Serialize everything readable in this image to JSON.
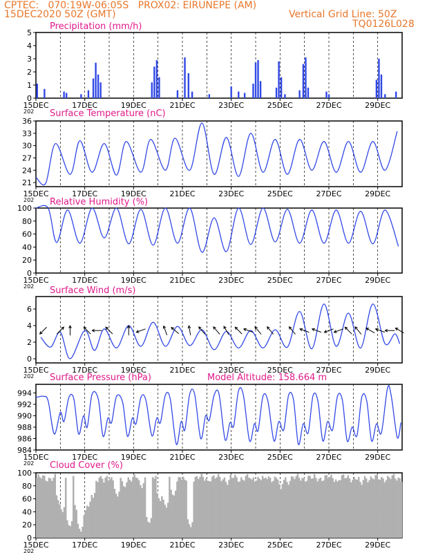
{
  "header": {
    "line1": "CPTEC:   070:19W-06:05S   PROX02: EIRUNEPE (AM)",
    "line2": "15DEC2020 50Z (GMT)",
    "grid_note": "Vertical Grid Line: 50Z",
    "code": "TQ0126L028"
  },
  "colors": {
    "header": "#e8772a",
    "title": "#e0198a",
    "series": "#3048e6",
    "cloud": "#b0b0b0"
  },
  "x_axis": {
    "tick_labels": [
      "15DEC",
      "17DEC",
      "19DEC",
      "21DEC",
      "23DEC",
      "25DEC",
      "27DEC",
      "29DEC"
    ],
    "year_fragment": "202",
    "days": 15
  },
  "extra_label": "Model Altitude: 158.664 m",
  "chart_data": [
    {
      "type": "bar",
      "title": "Precipitation (mm/h)",
      "ylim": [
        0,
        5
      ],
      "yticks": [
        "0",
        "1",
        "2",
        "3",
        "4",
        "5"
      ],
      "events": [
        {
          "day": 0.05,
          "value": 1.1
        },
        {
          "day": 0.35,
          "value": 0.7
        },
        {
          "day": 1.15,
          "value": 0.5
        },
        {
          "day": 1.25,
          "value": 0.4
        },
        {
          "day": 1.85,
          "value": 0.3
        },
        {
          "day": 2.15,
          "value": 0.6
        },
        {
          "day": 2.35,
          "value": 1.5
        },
        {
          "day": 2.45,
          "value": 2.7
        },
        {
          "day": 2.55,
          "value": 1.8
        },
        {
          "day": 2.65,
          "value": 1.2
        },
        {
          "day": 4.75,
          "value": 1.2
        },
        {
          "day": 4.85,
          "value": 2.4
        },
        {
          "day": 4.95,
          "value": 2.9
        },
        {
          "day": 5.05,
          "value": 1.6
        },
        {
          "day": 5.8,
          "value": 0.6
        },
        {
          "day": 6.1,
          "value": 3.1
        },
        {
          "day": 6.25,
          "value": 1.9
        },
        {
          "day": 6.4,
          "value": 0.5
        },
        {
          "day": 7.1,
          "value": 0.3
        },
        {
          "day": 8.0,
          "value": 0.9
        },
        {
          "day": 8.3,
          "value": 0.5
        },
        {
          "day": 8.55,
          "value": 0.4
        },
        {
          "day": 8.9,
          "value": 1.1
        },
        {
          "day": 9.0,
          "value": 2.7
        },
        {
          "day": 9.1,
          "value": 2.9
        },
        {
          "day": 9.2,
          "value": 1.3
        },
        {
          "day": 9.85,
          "value": 0.8
        },
        {
          "day": 9.95,
          "value": 2.8
        },
        {
          "day": 10.05,
          "value": 1.6
        },
        {
          "day": 10.2,
          "value": 0.3
        },
        {
          "day": 10.8,
          "value": 0.6
        },
        {
          "day": 10.95,
          "value": 2.6
        },
        {
          "day": 11.05,
          "value": 3.1
        },
        {
          "day": 11.15,
          "value": 0.8
        },
        {
          "day": 11.9,
          "value": 0.5
        },
        {
          "day": 12.0,
          "value": 0.3
        },
        {
          "day": 13.95,
          "value": 1.4
        },
        {
          "day": 14.05,
          "value": 3.0
        },
        {
          "day": 14.15,
          "value": 1.8
        },
        {
          "day": 14.3,
          "value": 0.3
        },
        {
          "day": 14.75,
          "value": 0.5
        }
      ]
    },
    {
      "type": "line",
      "title": "Surface Temperature (nC)",
      "ylim": [
        20,
        36
      ],
      "ytick_values": [
        21,
        24,
        27,
        30,
        33,
        36
      ],
      "yticks": [
        "21",
        "24",
        "27",
        "30",
        "33",
        "36"
      ],
      "peaks": [
        [
          0,
          22.3
        ],
        [
          0.8,
          30.5
        ],
        [
          1.8,
          31.2
        ],
        [
          2.8,
          30.5
        ],
        [
          3.7,
          31
        ],
        [
          4.7,
          31.5
        ],
        [
          5.7,
          31.8
        ],
        [
          6.8,
          35.5
        ],
        [
          7.8,
          32
        ],
        [
          8.8,
          33
        ],
        [
          9.8,
          31.5
        ],
        [
          10.8,
          31.5
        ],
        [
          11.8,
          31
        ],
        [
          12.8,
          31
        ],
        [
          13.8,
          31
        ],
        [
          14.8,
          33.5
        ]
      ],
      "troughs": [
        [
          0.4,
          20.8
        ],
        [
          1.4,
          23
        ],
        [
          2.3,
          23.5
        ],
        [
          3.3,
          22.8
        ],
        [
          4.3,
          23.5
        ],
        [
          5.3,
          24
        ],
        [
          6.3,
          24
        ],
        [
          7.3,
          23
        ],
        [
          8.3,
          22.5
        ],
        [
          9.3,
          23.5
        ],
        [
          10.3,
          23
        ],
        [
          11.3,
          24
        ],
        [
          12.3,
          23.5
        ],
        [
          13.3,
          23.5
        ],
        [
          14.3,
          24
        ]
      ]
    },
    {
      "type": "line",
      "title": "Relative Humidity (%)",
      "ylim": [
        0,
        100
      ],
      "ytick_values": [
        0,
        20,
        40,
        60,
        80,
        100
      ],
      "yticks": [
        "0",
        "20",
        "40",
        "60",
        "80",
        "100"
      ],
      "peaks": [
        [
          0,
          100
        ],
        [
          0.5,
          100
        ],
        [
          1.3,
          97
        ],
        [
          2.3,
          100
        ],
        [
          3.3,
          100
        ],
        [
          4.3,
          98
        ],
        [
          5.3,
          100
        ],
        [
          6.3,
          100
        ],
        [
          7.3,
          85
        ],
        [
          8.3,
          100
        ],
        [
          9.3,
          100
        ],
        [
          10.3,
          98
        ],
        [
          11.3,
          97
        ],
        [
          12.3,
          97
        ],
        [
          13.3,
          95
        ],
        [
          14.3,
          97
        ]
      ],
      "troughs": [
        [
          0.85,
          47
        ],
        [
          1.8,
          46
        ],
        [
          2.8,
          54
        ],
        [
          3.8,
          45
        ],
        [
          4.8,
          43
        ],
        [
          5.8,
          46
        ],
        [
          6.8,
          32
        ],
        [
          7.8,
          33
        ],
        [
          8.8,
          44
        ],
        [
          9.8,
          48
        ],
        [
          10.8,
          46
        ],
        [
          11.8,
          46
        ],
        [
          12.8,
          46
        ],
        [
          13.8,
          45
        ],
        [
          14.85,
          41
        ]
      ]
    },
    {
      "type": "line",
      "title": "Surface Wind (m/s)",
      "ylim": [
        -0.5,
        7.5
      ],
      "ytick_values": [
        0,
        2,
        4,
        6
      ],
      "yticks": [
        "0",
        "2",
        "4",
        "6"
      ],
      "peaks": [
        [
          0.2,
          2.6
        ],
        [
          1.0,
          3.2
        ],
        [
          2.0,
          3.4
        ],
        [
          2.8,
          3.6
        ],
        [
          3.8,
          4.0
        ],
        [
          4.8,
          4.4
        ],
        [
          5.8,
          3.9
        ],
        [
          6.8,
          3.5
        ],
        [
          7.8,
          3.3
        ],
        [
          8.8,
          3.4
        ],
        [
          9.8,
          3.5
        ],
        [
          10.8,
          5.7
        ],
        [
          11.8,
          6.6
        ],
        [
          12.8,
          5.5
        ],
        [
          13.8,
          6.6
        ],
        [
          14.7,
          3.0
        ]
      ],
      "troughs": [
        [
          0.6,
          1.4
        ],
        [
          1.4,
          0.0
        ],
        [
          2.4,
          1.0
        ],
        [
          3.3,
          1.3
        ],
        [
          4.3,
          1.5
        ],
        [
          5.3,
          1.5
        ],
        [
          6.3,
          1.6
        ],
        [
          7.3,
          1.1
        ],
        [
          8.3,
          1.3
        ],
        [
          9.3,
          1.3
        ],
        [
          10.3,
          1.4
        ],
        [
          11.3,
          1.2
        ],
        [
          12.3,
          1.5
        ],
        [
          13.3,
          1.3
        ],
        [
          14.3,
          1.8
        ],
        [
          14.9,
          1.8
        ]
      ],
      "arrows": [
        {
          "day": 0.3,
          "dir": 225
        },
        {
          "day": 1.0,
          "dir": 45
        },
        {
          "day": 1.4,
          "dir": 90
        },
        {
          "day": 2.1,
          "dir": 135
        },
        {
          "day": 2.5,
          "dir": 180
        },
        {
          "day": 3.0,
          "dir": 135
        },
        {
          "day": 3.8,
          "dir": 90
        },
        {
          "day": 4.3,
          "dir": 200
        },
        {
          "day": 5.3,
          "dir": 110
        },
        {
          "day": 5.7,
          "dir": 140
        },
        {
          "day": 6.3,
          "dir": 100
        },
        {
          "day": 6.8,
          "dir": 130
        },
        {
          "day": 7.4,
          "dir": 130
        },
        {
          "day": 7.8,
          "dir": 120
        },
        {
          "day": 8.3,
          "dir": 135
        },
        {
          "day": 8.7,
          "dir": 160
        },
        {
          "day": 9.1,
          "dir": 130
        },
        {
          "day": 9.6,
          "dir": 130
        },
        {
          "day": 10.5,
          "dir": 130
        },
        {
          "day": 11.0,
          "dir": 160
        },
        {
          "day": 11.5,
          "dir": 160
        },
        {
          "day": 12.0,
          "dir": 200
        },
        {
          "day": 12.4,
          "dir": 200
        },
        {
          "day": 12.8,
          "dir": 135
        },
        {
          "day": 13.2,
          "dir": 130
        },
        {
          "day": 13.7,
          "dir": 150
        },
        {
          "day": 14.1,
          "dir": 160
        },
        {
          "day": 14.5,
          "dir": 180
        },
        {
          "day": 14.9,
          "dir": 150
        }
      ]
    },
    {
      "type": "line",
      "title": "Surface Pressure (hPa)",
      "ylim": [
        984,
        995.5
      ],
      "ytick_values": [
        984,
        986,
        988,
        990,
        992,
        994
      ],
      "yticks": [
        "984",
        "986",
        "988",
        "990",
        "992",
        "994"
      ],
      "points": [
        [
          0,
          993.2
        ],
        [
          0.3,
          993.4
        ],
        [
          0.5,
          992.6
        ],
        [
          0.75,
          986.8
        ],
        [
          1.0,
          990.6
        ],
        [
          1.15,
          989
        ],
        [
          1.35,
          993.2
        ],
        [
          1.55,
          993
        ],
        [
          1.75,
          986.8
        ],
        [
          1.95,
          990
        ],
        [
          2.1,
          988
        ],
        [
          2.3,
          993.8
        ],
        [
          2.55,
          993
        ],
        [
          2.75,
          986.4
        ],
        [
          2.95,
          989.6
        ],
        [
          3.1,
          988.8
        ],
        [
          3.3,
          993.4
        ],
        [
          3.55,
          992.4
        ],
        [
          3.75,
          986.4
        ],
        [
          3.95,
          989.6
        ],
        [
          4.1,
          988.6
        ],
        [
          4.3,
          993.2
        ],
        [
          4.5,
          992.8
        ],
        [
          4.75,
          986.5
        ],
        [
          4.95,
          989.6
        ],
        [
          5.1,
          988.8
        ],
        [
          5.3,
          993.6
        ],
        [
          5.5,
          993
        ],
        [
          5.75,
          985
        ],
        [
          5.95,
          989
        ],
        [
          6.1,
          987.5
        ],
        [
          6.3,
          993.8
        ],
        [
          6.5,
          993.8
        ],
        [
          6.75,
          986
        ],
        [
          6.95,
          990
        ],
        [
          7.1,
          989.2
        ],
        [
          7.3,
          993.6
        ],
        [
          7.5,
          993.8
        ],
        [
          7.75,
          985.8
        ],
        [
          7.95,
          988.8
        ],
        [
          8.1,
          988.2
        ],
        [
          8.3,
          994.4
        ],
        [
          8.5,
          993.6
        ],
        [
          8.75,
          985.6
        ],
        [
          8.95,
          988.6
        ],
        [
          9.1,
          987.4
        ],
        [
          9.3,
          993.4
        ],
        [
          9.5,
          992.6
        ],
        [
          9.75,
          985.6
        ],
        [
          9.95,
          989
        ],
        [
          10.15,
          987.5
        ],
        [
          10.35,
          993.6
        ],
        [
          10.55,
          992.8
        ],
        [
          10.75,
          985
        ],
        [
          10.95,
          988.6
        ],
        [
          11.15,
          987
        ],
        [
          11.35,
          993.5
        ],
        [
          11.55,
          992.6
        ],
        [
          11.75,
          985.6
        ],
        [
          11.95,
          989
        ],
        [
          12.15,
          987.5
        ],
        [
          12.35,
          993.4
        ],
        [
          12.55,
          992.8
        ],
        [
          12.75,
          985.6
        ],
        [
          12.95,
          988
        ],
        [
          13.15,
          986.5
        ],
        [
          13.35,
          993.3
        ],
        [
          13.55,
          992.6
        ],
        [
          13.75,
          985.6
        ],
        [
          13.95,
          988.6
        ],
        [
          14.15,
          987
        ],
        [
          14.4,
          994.8
        ],
        [
          14.55,
          993.6
        ],
        [
          14.8,
          986.2
        ],
        [
          14.95,
          988.8
        ]
      ]
    },
    {
      "type": "area",
      "title": "Cloud Cover (%)",
      "ylim": [
        0,
        100
      ],
      "ytick_values": [
        0,
        20,
        40,
        60,
        80,
        100
      ],
      "yticks": [
        "0",
        "20",
        "40",
        "60",
        "80",
        "100"
      ],
      "base": 92,
      "dips": [
        {
          "day": 0.9,
          "value": 55
        },
        {
          "day": 1.05,
          "value": 38
        },
        {
          "day": 1.35,
          "value": 15
        },
        {
          "day": 1.65,
          "value": 40
        },
        {
          "day": 1.8,
          "value": 8
        },
        {
          "day": 1.9,
          "value": 30
        },
        {
          "day": 2.1,
          "value": 45
        },
        {
          "day": 2.3,
          "value": 60
        },
        {
          "day": 2.75,
          "value": 85
        },
        {
          "day": 3.3,
          "value": 62
        },
        {
          "day": 3.6,
          "value": 75
        },
        {
          "day": 4.3,
          "value": 75
        },
        {
          "day": 4.6,
          "value": 20
        },
        {
          "day": 5.05,
          "value": 55
        },
        {
          "day": 5.3,
          "value": 45
        },
        {
          "day": 5.6,
          "value": 62
        },
        {
          "day": 6.1,
          "value": 85
        },
        {
          "day": 6.3,
          "value": 15
        },
        {
          "day": 7.0,
          "value": 88
        },
        {
          "day": 7.8,
          "value": 80
        },
        {
          "day": 8.3,
          "value": 85
        },
        {
          "day": 8.8,
          "value": 88
        },
        {
          "day": 9.3,
          "value": 90
        },
        {
          "day": 10.0,
          "value": 75
        },
        {
          "day": 10.3,
          "value": 80
        },
        {
          "day": 11.3,
          "value": 90
        },
        {
          "day": 12.3,
          "value": 85
        },
        {
          "day": 13.3,
          "value": 80
        },
        {
          "day": 14.0,
          "value": 90
        }
      ]
    }
  ]
}
